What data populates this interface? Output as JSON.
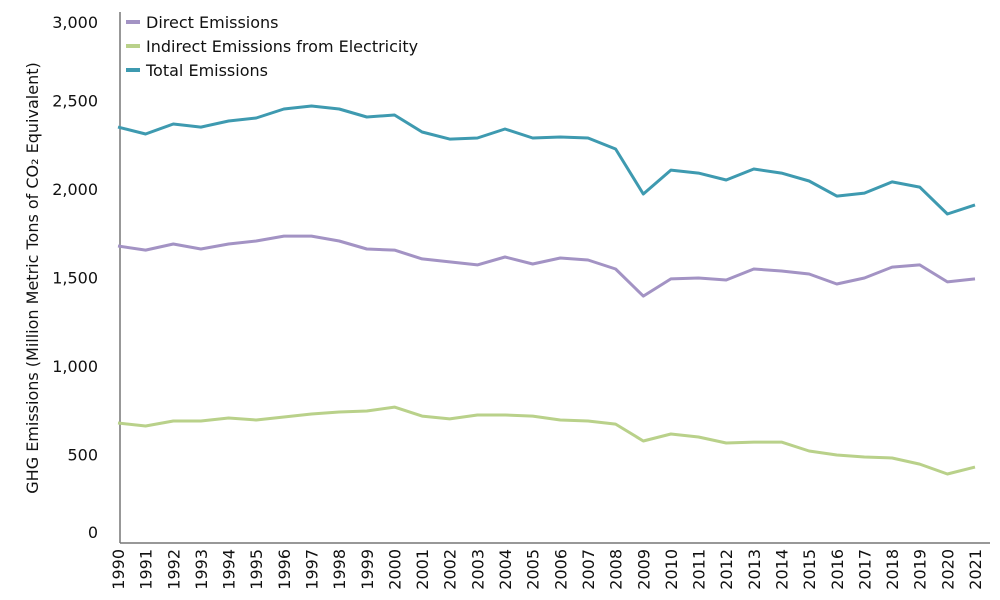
{
  "chart_data": {
    "type": "line",
    "title": "",
    "xlabel": "",
    "ylabel": "GHG Emissions (Million Metric Tons of CO₂ Equivalent)",
    "ylim": [
      0,
      3000
    ],
    "yticks": [
      0,
      500,
      1000,
      1500,
      2000,
      2500,
      3000
    ],
    "ytick_labels": [
      "0",
      "500",
      "1,000",
      "1,500",
      "2,000",
      "2,500",
      "3,000"
    ],
    "grid": false,
    "legend_position": "top-left",
    "x": [
      "1990",
      "1991",
      "1992",
      "1993",
      "1994",
      "1995",
      "1996",
      "1997",
      "1998",
      "1999",
      "2000",
      "2001",
      "2002",
      "2003",
      "2004",
      "2005",
      "2006",
      "2007",
      "2008",
      "2009",
      "2010",
      "2011",
      "2012",
      "2013",
      "2014",
      "2015",
      "2016",
      "2017",
      "2018",
      "2019",
      "2020",
      "2021"
    ],
    "series": [
      {
        "name": "Direct Emissions",
        "color": "#a393c4",
        "values": [
          1678,
          1655,
          1689,
          1661,
          1689,
          1706,
          1734,
          1734,
          1706,
          1661,
          1655,
          1605,
          1588,
          1571,
          1616,
          1576,
          1610,
          1599,
          1548,
          1395,
          1492,
          1497,
          1486,
          1548,
          1537,
          1520,
          1463,
          1497,
          1559,
          1571,
          1475,
          1492
        ]
      },
      {
        "name": "Indirect Emissions from Electricity",
        "color": "#b9d18a",
        "values": [
          678,
          661,
          689,
          689,
          706,
          695,
          712,
          729,
          740,
          746,
          768,
          717,
          701,
          723,
          723,
          717,
          695,
          689,
          672,
          576,
          616,
          599,
          565,
          570,
          570,
          520,
          497,
          486,
          480,
          446,
          390,
          429
        ]
      },
      {
        "name": "Total Emissions",
        "color": "#3e9ab0",
        "values": [
          2350,
          2311,
          2367,
          2350,
          2384,
          2401,
          2452,
          2469,
          2452,
          2407,
          2418,
          2322,
          2282,
          2288,
          2339,
          2288,
          2294,
          2288,
          2226,
          1972,
          2107,
          2090,
          2051,
          2113,
          2090,
          2045,
          1960,
          1977,
          2040,
          2011,
          1859,
          1910
        ]
      }
    ]
  }
}
